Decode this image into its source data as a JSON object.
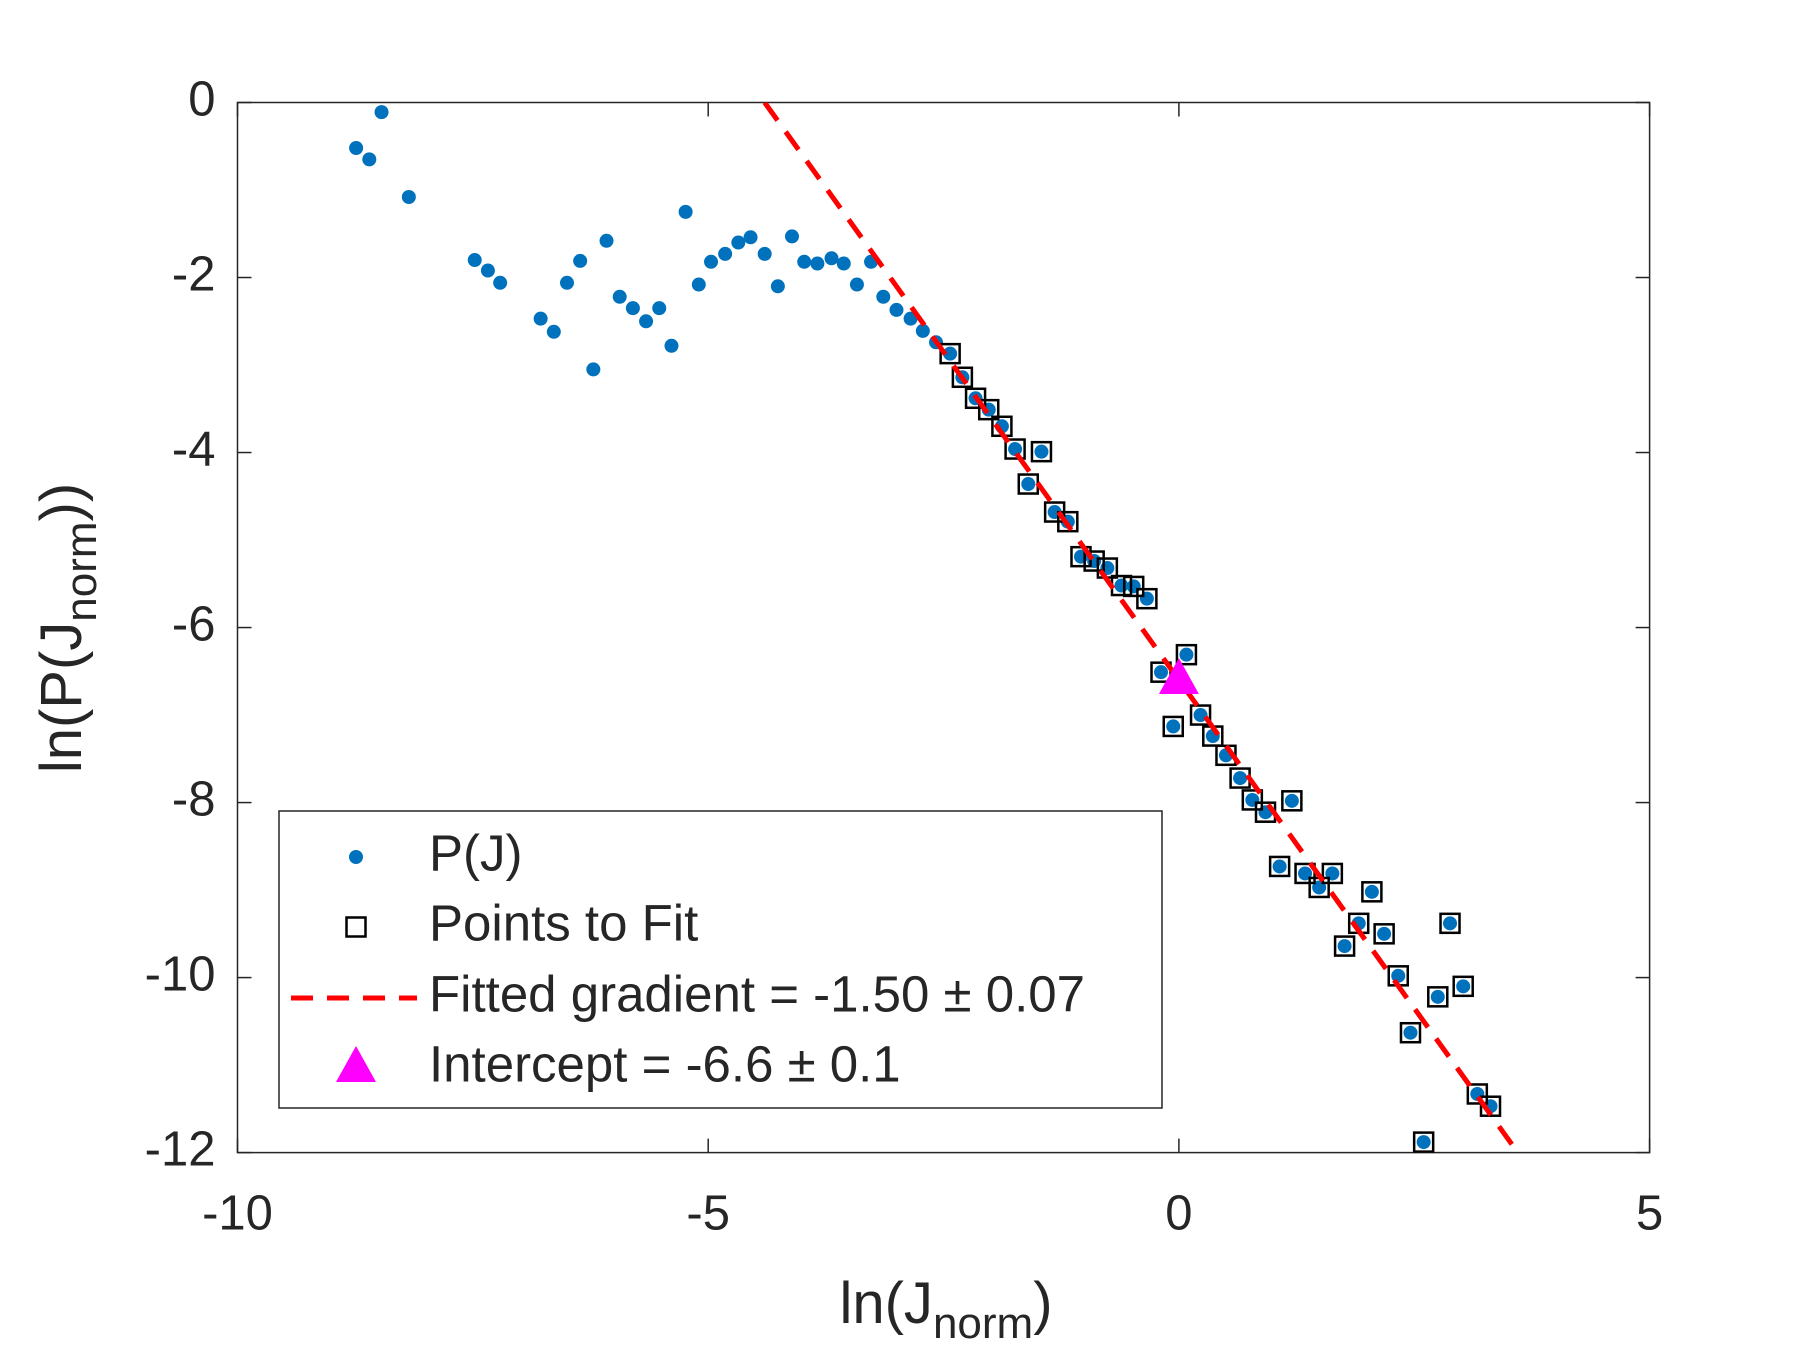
{
  "chart_data": {
    "type": "scatter",
    "xlabel": [
      "ln(J",
      "norm",
      ")"
    ],
    "ylabel": [
      "ln(P(J",
      "norm",
      "))"
    ],
    "xlim": [
      -10,
      5
    ],
    "xticks": [
      -10,
      -5,
      0,
      5
    ],
    "ylim": [
      -12,
      0
    ],
    "yticks": [
      0,
      -2,
      -4,
      -6,
      -8,
      -10,
      -12
    ],
    "series": [
      {
        "name": "P(J)",
        "color": "#0072bd",
        "marker": "dot",
        "x": [
          -8.74,
          -8.6,
          -8.47,
          -8.18,
          -7.48,
          -7.34,
          -7.21,
          -6.78,
          -6.64,
          -6.5,
          -6.36,
          -6.22,
          -6.08,
          -5.94,
          -5.8,
          -5.66,
          -5.52,
          -5.39,
          -5.24,
          -5.1,
          -4.97,
          -4.82,
          -4.68,
          -4.55,
          -4.4,
          -4.26,
          -4.11,
          -3.98,
          -3.84,
          -3.69,
          -3.56,
          -3.42,
          -3.27,
          -3.14,
          -3.0,
          -2.85,
          -2.72,
          -2.58,
          -2.43,
          -2.3,
          -2.16,
          -2.02,
          -1.88,
          -1.74,
          -1.6,
          -1.46,
          -1.32,
          -1.18,
          -1.04,
          -0.9,
          -0.76,
          -0.61,
          -0.48,
          -0.34,
          -0.19,
          -0.06,
          0.08,
          0.23,
          0.36,
          0.5,
          0.65,
          0.78,
          0.92,
          1.07,
          1.2,
          1.34,
          1.49,
          1.63,
          1.76,
          1.91,
          2.05,
          2.18,
          2.33,
          2.46,
          2.6,
          2.75,
          2.88,
          3.02,
          3.17,
          3.31
        ],
        "values": [
          -0.52,
          -0.65,
          -0.11,
          -1.08,
          -1.8,
          -1.92,
          -2.06,
          -2.47,
          -2.62,
          -2.06,
          -1.81,
          -3.05,
          -1.58,
          -2.22,
          -2.35,
          -2.5,
          -2.35,
          -2.78,
          -1.25,
          -2.08,
          -1.82,
          -1.73,
          -1.6,
          -1.54,
          -1.73,
          -2.1,
          -1.53,
          -1.82,
          -1.84,
          -1.78,
          -1.84,
          -2.08,
          -1.82,
          -2.22,
          -2.37,
          -2.47,
          -2.61,
          -2.74,
          -2.87,
          -3.14,
          -3.38,
          -3.51,
          -3.7,
          -3.96,
          -4.36,
          -3.99,
          -4.68,
          -4.79,
          -5.19,
          -5.24,
          -5.32,
          -5.52,
          -5.53,
          -5.67,
          -6.51,
          -7.13,
          -6.31,
          -7.0,
          -7.24,
          -7.46,
          -7.72,
          -7.97,
          -8.11,
          -8.73,
          -7.98,
          -8.81,
          -8.97,
          -8.81,
          -9.64,
          -9.38,
          -9.02,
          -9.5,
          -9.98,
          -10.63,
          -11.88,
          -10.22,
          -9.38,
          -10.1,
          -11.33,
          -11.47
        ]
      },
      {
        "name": "Points to Fit",
        "color": "#000000",
        "marker": "square",
        "x": [
          -2.43,
          -2.3,
          -2.16,
          -2.02,
          -1.88,
          -1.74,
          -1.6,
          -1.46,
          -1.32,
          -1.18,
          -1.04,
          -0.9,
          -0.76,
          -0.61,
          -0.48,
          -0.34,
          -0.19,
          -0.06,
          0.08,
          0.23,
          0.36,
          0.5,
          0.65,
          0.78,
          0.92,
          1.07,
          1.2,
          1.34,
          1.49,
          1.63,
          1.76,
          1.91,
          2.05,
          2.18,
          2.33,
          2.46,
          2.6,
          2.75,
          2.88,
          3.02,
          3.17,
          3.31
        ],
        "values": [
          -2.87,
          -3.14,
          -3.38,
          -3.51,
          -3.7,
          -3.96,
          -4.36,
          -3.99,
          -4.68,
          -4.79,
          -5.19,
          -5.24,
          -5.32,
          -5.52,
          -5.53,
          -5.67,
          -6.51,
          -7.13,
          -6.31,
          -7.0,
          -7.24,
          -7.46,
          -7.72,
          -7.97,
          -8.11,
          -8.73,
          -7.98,
          -8.81,
          -8.97,
          -8.81,
          -9.64,
          -9.38,
          -9.02,
          -9.5,
          -9.98,
          -10.63,
          -11.88,
          -10.22,
          -9.38,
          -10.1,
          -11.33,
          -11.47
        ]
      },
      {
        "name": "Fitted gradient = -1.50 ± 0.07",
        "color": "#ff0000",
        "marker": "dashed-line",
        "x": [
          -4.4,
          3.6
        ],
        "values": [
          0,
          -12
        ]
      },
      {
        "name": "Intercept = -6.6 ± 0.1",
        "color": "#ff00ff",
        "marker": "triangle",
        "x": [
          0
        ],
        "values": [
          -6.6
        ]
      }
    ]
  }
}
